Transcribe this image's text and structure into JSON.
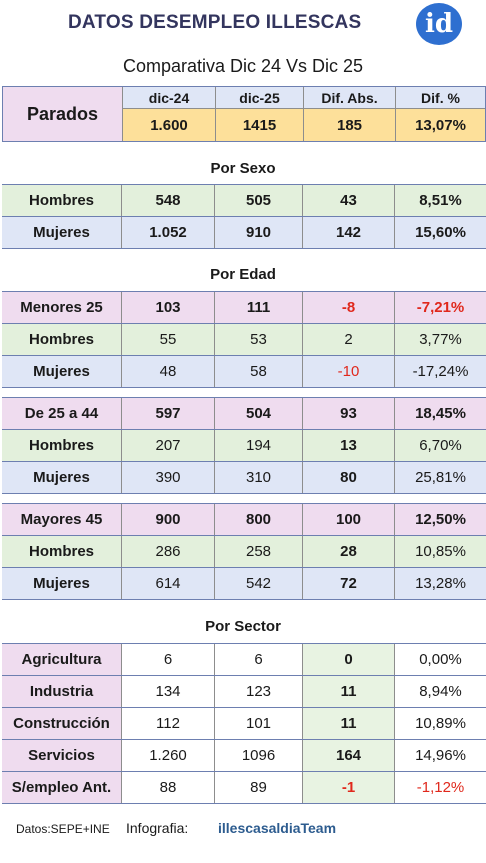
{
  "header": {
    "title": "DATOS DESEMPLEO ILLESCAS",
    "logo_text": "id",
    "subtitle": "Comparativa Dic 24 Vs Dic 25"
  },
  "summary": {
    "label": "Parados",
    "columns": [
      "dic-24",
      "dic-25",
      "Dif. Abs.",
      "Dif. %"
    ],
    "values": [
      "1.600",
      "1415",
      "185",
      "13,07%"
    ]
  },
  "sexo": {
    "title": "Por Sexo",
    "rows": [
      {
        "label": "Hombres",
        "v1": "548",
        "v2": "505",
        "abs": "43",
        "pct": "8,51%"
      },
      {
        "label": "Mujeres",
        "v1": "1.052",
        "v2": "910",
        "abs": "142",
        "pct": "15,60%"
      }
    ]
  },
  "edad": {
    "title": "Por Edad",
    "groups": [
      {
        "header": {
          "label": "Menores 25",
          "v1": "103",
          "v2": "111",
          "abs": "-8",
          "pct": "-7,21%"
        },
        "rows": [
          {
            "label": "Hombres",
            "v1": "55",
            "v2": "53",
            "abs": "2",
            "pct": "3,77%"
          },
          {
            "label": "Mujeres",
            "v1": "48",
            "v2": "58",
            "abs": "-10",
            "pct": "-17,24%"
          }
        ]
      },
      {
        "header": {
          "label": "De 25 a 44",
          "v1": "597",
          "v2": "504",
          "abs": "93",
          "pct": "18,45%"
        },
        "rows": [
          {
            "label": "Hombres",
            "v1": "207",
            "v2": "194",
            "abs": "13",
            "pct": "6,70%"
          },
          {
            "label": "Mujeres",
            "v1": "390",
            "v2": "310",
            "abs": "80",
            "pct": "25,81%"
          }
        ]
      },
      {
        "header": {
          "label": "Mayores 45",
          "v1": "900",
          "v2": "800",
          "abs": "100",
          "pct": "12,50%"
        },
        "rows": [
          {
            "label": "Hombres",
            "v1": "286",
            "v2": "258",
            "abs": "28",
            "pct": "10,85%"
          },
          {
            "label": "Mujeres",
            "v1": "614",
            "v2": "542",
            "abs": "72",
            "pct": "13,28%"
          }
        ]
      }
    ]
  },
  "sector": {
    "title": "Por Sector",
    "rows": [
      {
        "label": "Agricultura",
        "v1": "6",
        "v2": "6",
        "abs": "0",
        "pct": "0,00%"
      },
      {
        "label": "Industria",
        "v1": "134",
        "v2": "123",
        "abs": "11",
        "pct": "8,94%"
      },
      {
        "label": "Construcción",
        "v1": "112",
        "v2": "101",
        "abs": "11",
        "pct": "10,89%"
      },
      {
        "label": "Servicios",
        "v1": "1.260",
        "v2": "1096",
        "abs": "164",
        "pct": "14,96%"
      },
      {
        "label": "S/empleo Ant.",
        "v1": "88",
        "v2": "89",
        "abs": "-1",
        "pct": "-1,12%"
      }
    ]
  },
  "footer": {
    "source": "Datos:SEPE+INE",
    "infografia": "Infografia:",
    "team": "illescasaldiaTeam"
  },
  "colors": {
    "negative": "#e0281c",
    "label_pink": "#efdcef",
    "row_green": "#e3f0dc",
    "row_blue": "#dfe6f6",
    "summary_yellow": "#fde09a"
  }
}
